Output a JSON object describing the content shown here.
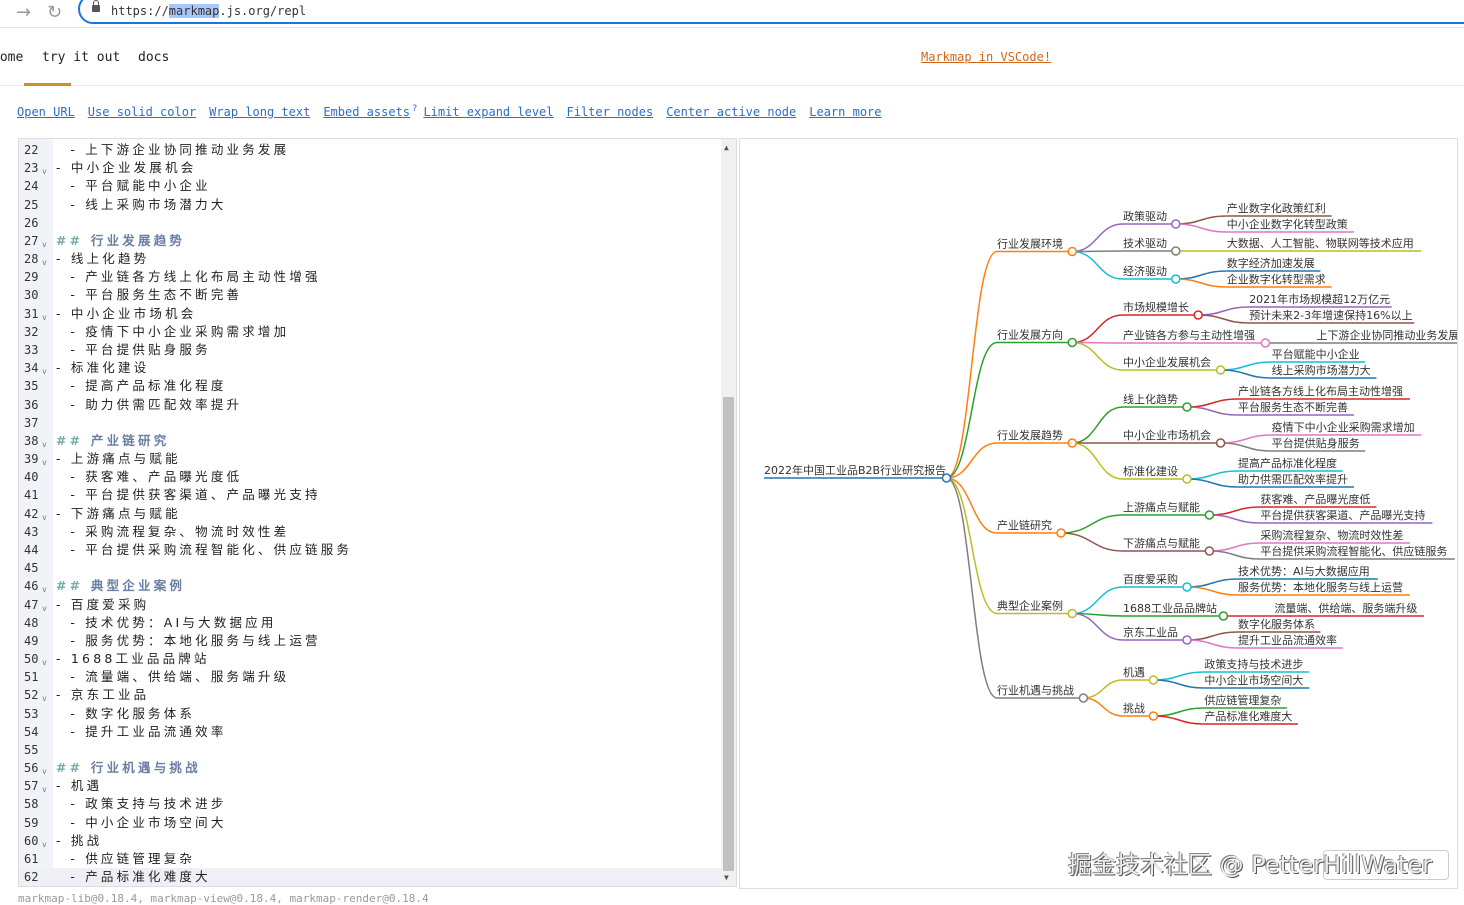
{
  "browser": {
    "url_prefix": "https://",
    "url_highlight": "markmap",
    "url_suffix": ".js.org/repl",
    "back_icon": "arrow-right-icon",
    "reload_icon": "reload-icon"
  },
  "nav": {
    "items": [
      "home",
      "try it out",
      "docs"
    ],
    "active": "try it out",
    "vscode_link": "Markmap in VSCode!"
  },
  "toolbar": {
    "links": [
      "Open URL",
      "Use solid color",
      "Wrap long text",
      "Embed assets",
      "Limit expand level",
      "Filter nodes",
      "Center active node",
      "Learn more"
    ],
    "embed_help": "?"
  },
  "editor": {
    "active_line": 62,
    "lines": [
      {
        "n": 22,
        "t": "  - 上下游企业协同推动业务发展"
      },
      {
        "n": 23,
        "t": "- 中小企业发展机会",
        "fold": true
      },
      {
        "n": 24,
        "t": "  - 平台赋能中小企业"
      },
      {
        "n": 25,
        "t": "  - 线上采购市场潜力大"
      },
      {
        "n": 26,
        "t": ""
      },
      {
        "n": 27,
        "t": "行业发展趋势",
        "h": true,
        "fold": true
      },
      {
        "n": 28,
        "t": "- 线上化趋势",
        "fold": true
      },
      {
        "n": 29,
        "t": "  - 产业链各方线上化布局主动性增强"
      },
      {
        "n": 30,
        "t": "  - 平台服务生态不断完善"
      },
      {
        "n": 31,
        "t": "- 中小企业市场机会",
        "fold": true
      },
      {
        "n": 32,
        "t": "  - 疫情下中小企业采购需求增加"
      },
      {
        "n": 33,
        "t": "  - 平台提供贴身服务"
      },
      {
        "n": 34,
        "t": "- 标准化建设",
        "fold": true
      },
      {
        "n": 35,
        "t": "  - 提高产品标准化程度"
      },
      {
        "n": 36,
        "t": "  - 助力供需匹配效率提升"
      },
      {
        "n": 37,
        "t": ""
      },
      {
        "n": 38,
        "t": "产业链研究",
        "h": true,
        "fold": true
      },
      {
        "n": 39,
        "t": "- 上游痛点与赋能",
        "fold": true
      },
      {
        "n": 40,
        "t": "  - 获客难、产品曝光度低"
      },
      {
        "n": 41,
        "t": "  - 平台提供获客渠道、产品曝光支持"
      },
      {
        "n": 42,
        "t": "- 下游痛点与赋能",
        "fold": true
      },
      {
        "n": 43,
        "t": "  - 采购流程复杂、物流时效性差"
      },
      {
        "n": 44,
        "t": "  - 平台提供采购流程智能化、供应链服务"
      },
      {
        "n": 45,
        "t": ""
      },
      {
        "n": 46,
        "t": "典型企业案例",
        "h": true,
        "fold": true
      },
      {
        "n": 47,
        "t": "- 百度爱采购",
        "fold": true
      },
      {
        "n": 48,
        "t": "  - 技术优势：AI与大数据应用"
      },
      {
        "n": 49,
        "t": "  - 服务优势：本地化服务与线上运营"
      },
      {
        "n": 50,
        "t": "- 1688工业品品牌站",
        "fold": true
      },
      {
        "n": 51,
        "t": "  - 流量端、供给端、服务端升级"
      },
      {
        "n": 52,
        "t": "- 京东工业品",
        "fold": true
      },
      {
        "n": 53,
        "t": "  - 数字化服务体系"
      },
      {
        "n": 54,
        "t": "  - 提升工业品流通效率"
      },
      {
        "n": 55,
        "t": ""
      },
      {
        "n": 56,
        "t": "行业机遇与挑战",
        "h": true,
        "fold": true
      },
      {
        "n": 57,
        "t": "- 机遇",
        "fold": true
      },
      {
        "n": 58,
        "t": "  - 政策支持与技术进步"
      },
      {
        "n": 59,
        "t": "  - 中小企业市场空间大"
      },
      {
        "n": 60,
        "t": "- 挑战",
        "fold": true
      },
      {
        "n": 61,
        "t": "  - 供应链管理复杂"
      },
      {
        "n": 62,
        "t": "  - 产品标准化难度大"
      }
    ]
  },
  "mindmap": {
    "root": {
      "label": "2022年中国工业品B2B行业研究报告",
      "color": "#1f77b4",
      "children": [
        {
          "label": "行业发展环境",
          "color": "#ff7f0e",
          "children": [
            {
              "label": "政策驱动",
              "color": "#9467bd",
              "children": [
                {
                  "label": "产业数字化政策红利",
                  "color": "#8c564b"
                },
                {
                  "label": "中小企业数字化转型政策",
                  "color": "#e377c2"
                }
              ]
            },
            {
              "label": "技术驱动",
              "color": "#7f7f7f",
              "children": [
                {
                  "label": "大数据、人工智能、物联网等技术应用",
                  "color": "#bcbd22"
                }
              ]
            },
            {
              "label": "经济驱动",
              "color": "#17becf",
              "children": [
                {
                  "label": "数字经济加速发展",
                  "color": "#1f77b4"
                },
                {
                  "label": "企业数字化转型需求",
                  "color": "#ff7f0e"
                }
              ]
            }
          ]
        },
        {
          "label": "行业发展方向",
          "color": "#2ca02c",
          "children": [
            {
              "label": "市场规模增长",
              "color": "#d62728",
              "children": [
                {
                  "label": "2021年市场规模超12万亿元",
                  "color": "#9467bd"
                },
                {
                  "label": "预计未来2-3年增速保持16%以上",
                  "color": "#8c564b"
                }
              ]
            },
            {
              "label": "产业链各方参与主动性增强",
              "color": "#e377c2",
              "children": [
                {
                  "label": "上下游企业协同推动业务发展",
                  "color": "#7f7f7f"
                }
              ]
            },
            {
              "label": "中小企业发展机会",
              "color": "#bcbd22",
              "children": [
                {
                  "label": "平台赋能中小企业",
                  "color": "#17becf"
                },
                {
                  "label": "线上采购市场潜力大",
                  "color": "#1f77b4"
                }
              ]
            }
          ]
        },
        {
          "label": "行业发展趋势",
          "color": "#ff7f0e",
          "children": [
            {
              "label": "线上化趋势",
              "color": "#2ca02c",
              "children": [
                {
                  "label": "产业链各方线上化布局主动性增强",
                  "color": "#d62728"
                },
                {
                  "label": "平台服务生态不断完善",
                  "color": "#9467bd"
                }
              ]
            },
            {
              "label": "中小企业市场机会",
              "color": "#8c564b",
              "children": [
                {
                  "label": "疫情下中小企业采购需求增加",
                  "color": "#e377c2"
                },
                {
                  "label": "平台提供贴身服务",
                  "color": "#7f7f7f"
                }
              ]
            },
            {
              "label": "标准化建设",
              "color": "#bcbd22",
              "children": [
                {
                  "label": "提高产品标准化程度",
                  "color": "#17becf"
                },
                {
                  "label": "助力供需匹配效率提升",
                  "color": "#1f77b4"
                }
              ]
            }
          ]
        },
        {
          "label": "产业链研究",
          "color": "#ff7f0e",
          "children": [
            {
              "label": "上游痛点与赋能",
              "color": "#2ca02c",
              "children": [
                {
                  "label": "获客难、产品曝光度低",
                  "color": "#d62728"
                },
                {
                  "label": "平台提供获客渠道、产品曝光支持",
                  "color": "#9467bd"
                }
              ]
            },
            {
              "label": "下游痛点与赋能",
              "color": "#8c564b",
              "children": [
                {
                  "label": "采购流程复杂、物流时效性差",
                  "color": "#e377c2"
                },
                {
                  "label": "平台提供采购流程智能化、供应链服务",
                  "color": "#7f7f7f"
                }
              ]
            }
          ]
        },
        {
          "label": "典型企业案例",
          "color": "#bcbd22",
          "children": [
            {
              "label": "百度爱采购",
              "color": "#17becf",
              "children": [
                {
                  "label": "技术优势：AI与大数据应用",
                  "color": "#1f77b4"
                },
                {
                  "label": "服务优势：本地化服务与线上运营",
                  "color": "#ff7f0e"
                }
              ]
            },
            {
              "label": "1688工业品品牌站",
              "color": "#2ca02c",
              "children": [
                {
                  "label": "流量端、供给端、服务端升级",
                  "color": "#d62728"
                }
              ]
            },
            {
              "label": "京东工业品",
              "color": "#9467bd",
              "children": [
                {
                  "label": "数字化服务体系",
                  "color": "#8c564b"
                },
                {
                  "label": "提升工业品流通效率",
                  "color": "#e377c2"
                }
              ]
            }
          ]
        },
        {
          "label": "行业机遇与挑战",
          "color": "#7f7f7f",
          "children": [
            {
              "label": "机遇",
              "color": "#bcbd22",
              "children": [
                {
                  "label": "政策支持与技术进步",
                  "color": "#17becf"
                },
                {
                  "label": "中小企业市场空间大",
                  "color": "#1f77b4"
                }
              ]
            },
            {
              "label": "挑战",
              "color": "#ff7f0e",
              "children": [
                {
                  "label": "供应链管理复杂",
                  "color": "#2ca02c"
                },
                {
                  "label": "产品标准化难度大",
                  "color": "#d62728"
                }
              ]
            }
          ]
        }
      ]
    }
  },
  "footer": "markmap-lib@0.18.4, markmap-view@0.18.4, markmap-render@0.18.4",
  "watermark": "掘金技术社区 @ PetterHillWater"
}
